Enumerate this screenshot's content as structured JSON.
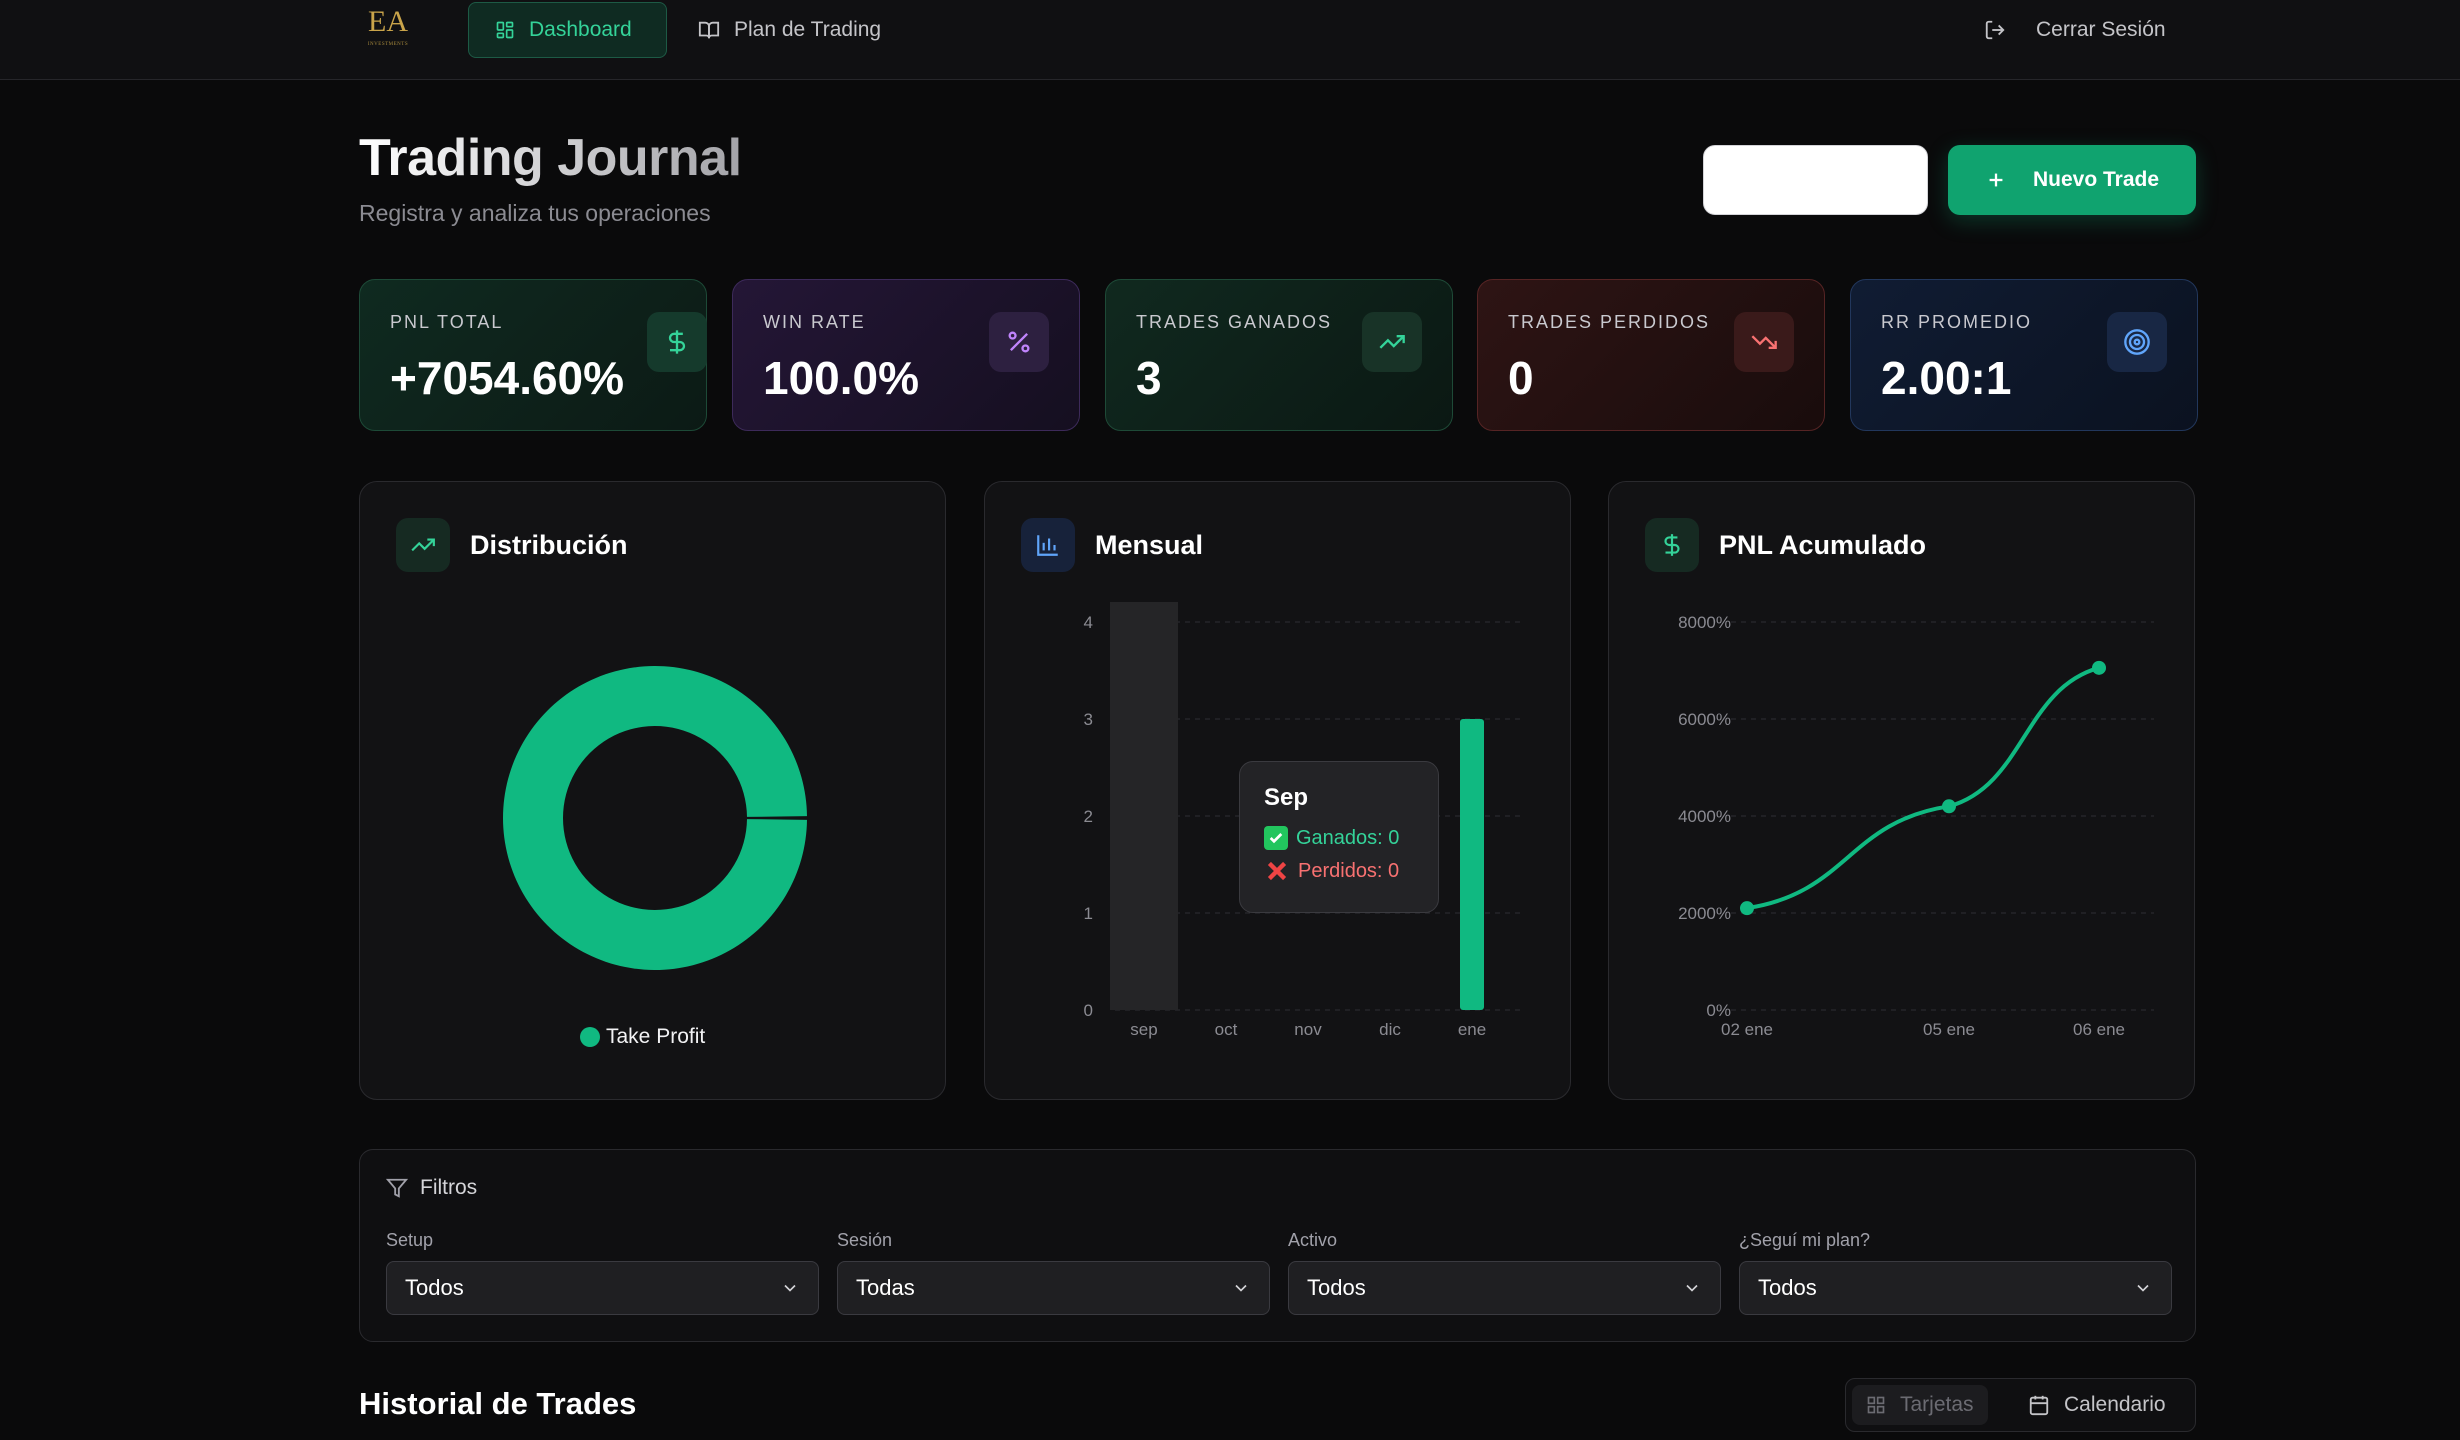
{
  "nav": {
    "logo_text": "EA",
    "logo_sub": "INVESTMENTS",
    "tabs": [
      {
        "label": "Dashboard",
        "icon": "grid-icon",
        "active": true
      },
      {
        "label": "Plan de Trading",
        "icon": "book-icon",
        "active": false
      }
    ],
    "logout_label": "Cerrar Sesión"
  },
  "header": {
    "title": "Trading Journal",
    "subtitle": "Registra y analiza tus operaciones",
    "new_trade_label": "Nuevo Trade"
  },
  "stats": [
    {
      "label": "PNL TOTAL",
      "value": "+7054.60%",
      "icon": "dollar-icon",
      "color": "#34d399"
    },
    {
      "label": "WIN RATE",
      "value": "100.0%",
      "icon": "percent-icon",
      "color": "#c084fc"
    },
    {
      "label": "TRADES GANADOS",
      "value": "3",
      "icon": "trending-up-icon",
      "color": "#34d399"
    },
    {
      "label": "TRADES PERDIDOS",
      "value": "0",
      "icon": "trending-down-icon",
      "color": "#f87171"
    },
    {
      "label": "RR PROMEDIO",
      "value": "2.00:1",
      "icon": "target-icon",
      "color": "#60a5fa"
    }
  ],
  "panels": {
    "distribution": {
      "title": "Distribución",
      "legend": "Take Profit"
    },
    "monthly": {
      "title": "Mensual",
      "tooltip": {
        "month": "Sep",
        "won": "Ganados: 0",
        "lost": "Perdidos: 0"
      }
    },
    "cumulative": {
      "title": "PNL Acumulado"
    }
  },
  "chart_data": [
    {
      "type": "pie",
      "variant": "donut",
      "labels": [
        "Take Profit"
      ],
      "values": [
        3
      ],
      "colors": [
        "#10b981"
      ]
    },
    {
      "type": "bar",
      "categories": [
        "sep",
        "oct",
        "nov",
        "dic",
        "ene"
      ],
      "series": [
        {
          "name": "Ganados",
          "values": [
            0,
            0,
            0,
            0,
            3
          ],
          "color": "#10b981"
        },
        {
          "name": "Perdidos",
          "values": [
            0,
            0,
            0,
            0,
            0
          ],
          "color": "#ef4444"
        }
      ],
      "yticks": [
        "0",
        "1",
        "2",
        "3",
        "4"
      ],
      "ylim": [
        0,
        4
      ],
      "grid": true,
      "highlight_category": "sep"
    },
    {
      "type": "line",
      "x": [
        "02 ene",
        "05 ene",
        "06 ene"
      ],
      "y": [
        2100,
        4200,
        7054.6
      ],
      "yticks": [
        "0%",
        "2000%",
        "4000%",
        "6000%",
        "8000%"
      ],
      "ylim": [
        0,
        8000
      ],
      "grid": true,
      "color": "#10b981"
    }
  ],
  "filters": {
    "title": "Filtros",
    "groups": [
      {
        "label": "Setup",
        "value": "Todos"
      },
      {
        "label": "Sesión",
        "value": "Todas"
      },
      {
        "label": "Activo",
        "value": "Todos"
      },
      {
        "label": "¿Seguí mi plan?",
        "value": "Todos"
      }
    ]
  },
  "history": {
    "title": "Historial de Trades",
    "views": [
      {
        "label": "Tarjetas",
        "icon": "grid-icon",
        "active": true
      },
      {
        "label": "Calendario",
        "icon": "calendar-icon",
        "active": false
      }
    ]
  }
}
